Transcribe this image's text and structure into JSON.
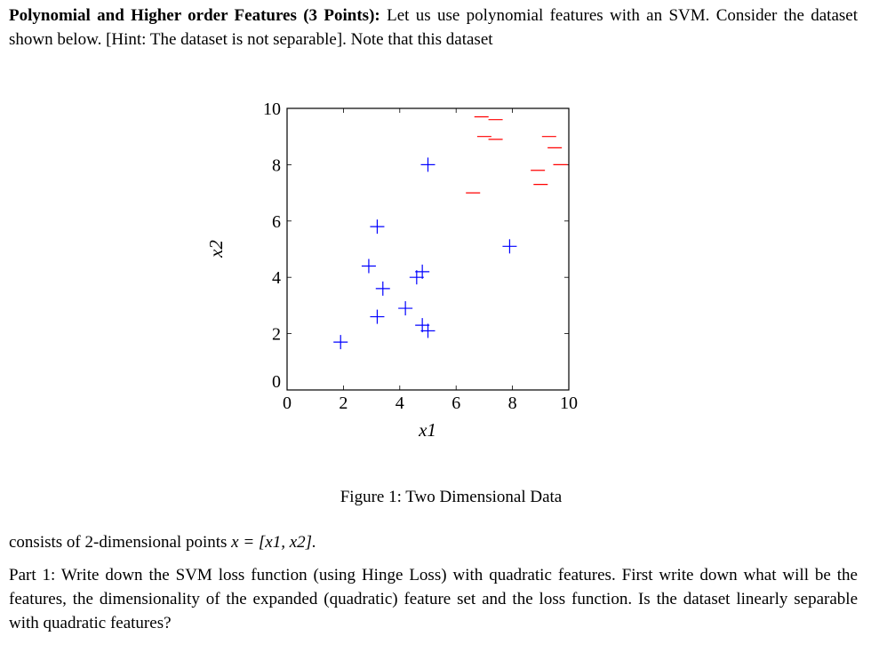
{
  "intro": {
    "heading": "Polynomial and Higher order Features (3 Points):",
    "text": "Let us use polynomial features with an SVM. Consider the dataset shown below. [Hint: The dataset is not separable]. Note that this dataset"
  },
  "figure": {
    "caption": "Figure 1: Two Dimensional Data"
  },
  "chart_data": {
    "type": "scatter",
    "title": "",
    "xlabel": "x1",
    "ylabel": "x2",
    "xlim": [
      0,
      10
    ],
    "ylim": [
      0,
      10
    ],
    "xticks": [
      0,
      2,
      4,
      6,
      8,
      10
    ],
    "yticks": [
      0,
      2,
      4,
      6,
      8,
      10
    ],
    "grid": false,
    "series": [
      {
        "marker": "+",
        "color": "#0000ff",
        "points": [
          [
            5.0,
            8.0
          ],
          [
            3.2,
            5.8
          ],
          [
            2.9,
            4.4
          ],
          [
            4.8,
            4.2
          ],
          [
            4.6,
            4.0
          ],
          [
            3.4,
            3.6
          ],
          [
            4.2,
            2.9
          ],
          [
            3.2,
            2.6
          ],
          [
            4.8,
            2.3
          ],
          [
            5.0,
            2.1
          ],
          [
            1.9,
            1.7
          ],
          [
            7.9,
            5.1
          ]
        ]
      },
      {
        "marker": "−",
        "color": "#ff0000",
        "points": [
          [
            6.9,
            9.7
          ],
          [
            7.0,
            9.0
          ],
          [
            7.4,
            9.6
          ],
          [
            7.4,
            8.9
          ],
          [
            9.3,
            9.0
          ],
          [
            9.5,
            8.6
          ],
          [
            9.7,
            8.0
          ],
          [
            8.9,
            7.8
          ],
          [
            9.0,
            7.3
          ],
          [
            6.6,
            7.0
          ]
        ]
      }
    ]
  },
  "continuation": {
    "prefix": "consists of 2-dimensional points ",
    "math": "x = [x1, x2].",
    "suffix": ""
  },
  "part1": {
    "text": "Part 1: Write down the SVM loss function (using Hinge Loss) with quadratic features. First write down what will be the features, the dimensionality of the expanded (quadratic) feature set and the loss function. Is the dataset linearly separable with quadratic features?"
  }
}
